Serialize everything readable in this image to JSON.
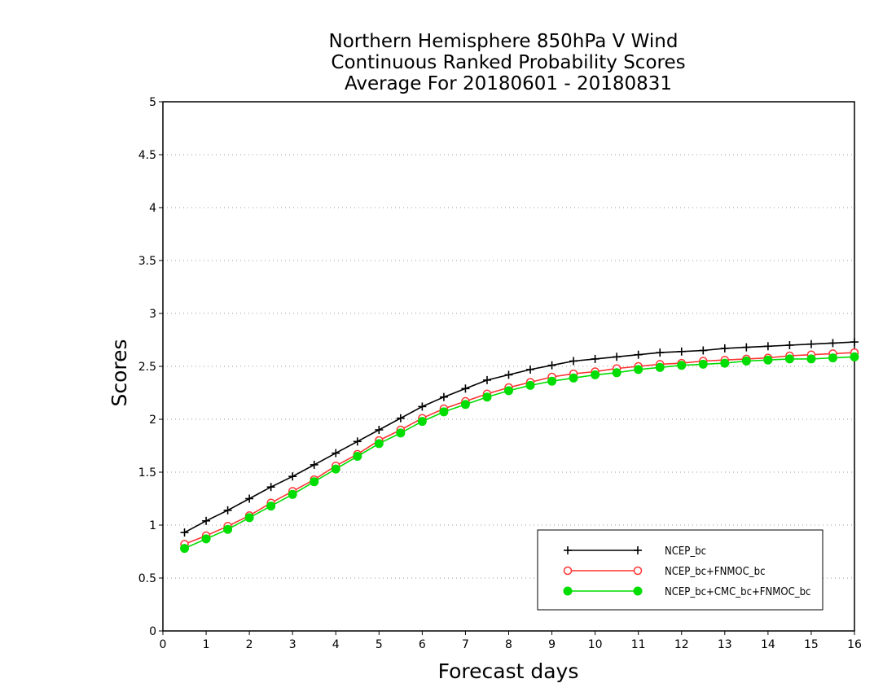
{
  "chart_data": {
    "type": "line",
    "title": [
      "Northern Hemisphere 850hPa V Wind",
      "Continuous Ranked Probability Scores",
      "Average For 20180601 - 20180831"
    ],
    "xlabel": "Forecast days",
    "ylabel": "Scores",
    "xlim": [
      0,
      16
    ],
    "ylim": [
      0,
      5
    ],
    "xticks": [
      "0",
      "1",
      "2",
      "3",
      "4",
      "5",
      "6",
      "7",
      "8",
      "9",
      "10",
      "11",
      "12",
      "13",
      "14",
      "15",
      "16"
    ],
    "yticks": [
      "0",
      "0.5",
      "1",
      "1.5",
      "2",
      "2.5",
      "3",
      "3.5",
      "4",
      "4.5",
      "5"
    ],
    "grid": "horizontal-dotted",
    "legend_position": "bottom-right",
    "x": [
      0.5,
      1,
      1.5,
      2,
      2.5,
      3,
      3.5,
      4,
      4.5,
      5,
      5.5,
      6,
      6.5,
      7,
      7.5,
      8,
      8.5,
      9,
      9.5,
      10,
      10.5,
      11,
      11.5,
      12,
      12.5,
      13,
      13.5,
      14,
      14.5,
      15,
      15.5,
      16
    ],
    "series": [
      {
        "name": "NCEP_bc",
        "color": "#000000",
        "marker": "plus",
        "values": [
          0.93,
          1.04,
          1.14,
          1.25,
          1.36,
          1.46,
          1.57,
          1.68,
          1.79,
          1.9,
          2.01,
          2.12,
          2.21,
          2.29,
          2.37,
          2.42,
          2.47,
          2.51,
          2.55,
          2.57,
          2.59,
          2.61,
          2.63,
          2.64,
          2.65,
          2.67,
          2.68,
          2.69,
          2.7,
          2.71,
          2.72,
          2.73
        ]
      },
      {
        "name": "NCEP_bc+FNMOC_bc",
        "color": "#ff3333",
        "marker": "open-circle",
        "values": [
          0.82,
          0.9,
          0.99,
          1.09,
          1.21,
          1.32,
          1.43,
          1.56,
          1.67,
          1.8,
          1.9,
          2.01,
          2.1,
          2.17,
          2.24,
          2.3,
          2.35,
          2.4,
          2.43,
          2.45,
          2.48,
          2.5,
          2.52,
          2.53,
          2.55,
          2.56,
          2.57,
          2.58,
          2.6,
          2.61,
          2.62,
          2.63
        ]
      },
      {
        "name": "NCEP_bc+CMC_bc+FNMOC_bc",
        "color": "#00dd00",
        "marker": "filled-circle",
        "values": [
          0.78,
          0.87,
          0.96,
          1.07,
          1.18,
          1.29,
          1.41,
          1.53,
          1.65,
          1.77,
          1.87,
          1.98,
          2.07,
          2.14,
          2.21,
          2.27,
          2.32,
          2.36,
          2.39,
          2.42,
          2.44,
          2.47,
          2.49,
          2.51,
          2.52,
          2.53,
          2.55,
          2.56,
          2.57,
          2.57,
          2.58,
          2.59
        ]
      }
    ]
  }
}
